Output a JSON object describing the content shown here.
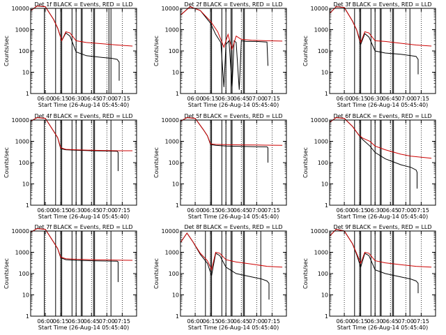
{
  "colors": {
    "events": "#000000",
    "lld": "#cc0000",
    "axis": "#000000",
    "background": "#ffffff"
  },
  "shared": {
    "title_suffix": "BLACK = Events, RED = LLD",
    "xlabel": "Start Time (26-Aug-14 05:45:40)",
    "ylabel": "Counts/sec",
    "y_ticks": [
      "1",
      "10",
      "100",
      "1000",
      "10000"
    ],
    "x_ticks": [
      "06:00",
      "06:15",
      "06:30",
      "06:45",
      "07:00",
      "07:15"
    ]
  },
  "chart_data": [
    {
      "type": "line",
      "title": "Det 1f BLACK = Events, RED = LLD",
      "xlabel": "Start Time (26-Aug-14 05:45:40)",
      "ylabel": "Counts/sec",
      "y_scale": "log",
      "ylim": [
        1,
        10000
      ],
      "x_ticks": [
        "06:00",
        "06:15",
        "06:30",
        "06:45",
        "07:00",
        "07:15"
      ],
      "series": [
        {
          "name": "BLACK = Events",
          "x": [
            "05:46",
            "05:52",
            "06:00",
            "06:08",
            "06:12",
            "06:16",
            "06:20",
            "06:24",
            "06:30",
            "06:40",
            "06:55",
            "07:05",
            "07:10",
            "07:12",
            "07:12"
          ],
          "y": [
            8000,
            13000,
            12000,
            3000,
            1200,
            300,
            700,
            500,
            90,
            60,
            50,
            45,
            40,
            30,
            4
          ]
        },
        {
          "name": "RED = LLD",
          "x": [
            "05:46",
            "05:52",
            "06:00",
            "06:08",
            "06:12",
            "06:16",
            "06:20",
            "06:24",
            "06:30",
            "06:40",
            "06:55",
            "07:10",
            "07:25"
          ],
          "y": [
            8000,
            13000,
            12000,
            3000,
            1200,
            300,
            800,
            700,
            300,
            250,
            220,
            190,
            170
          ]
        }
      ],
      "vlines": [
        "05:59",
        "06:10",
        "06:15",
        "06:16",
        "06:26",
        "06:30",
        "06:35",
        "06:36",
        "06:47",
        "06:48",
        "07:02",
        "07:04"
      ]
    },
    {
      "type": "line",
      "title": "Det 2f BLACK = Events, RED = LLD",
      "xlabel": "Start Time (26-Aug-14 05:45:40)",
      "ylabel": "Counts/sec",
      "y_scale": "log",
      "ylim": [
        1,
        10000
      ],
      "x_ticks": [
        "06:00",
        "06:15",
        "06:30",
        "06:45",
        "07:00",
        "07:15"
      ],
      "series": [
        {
          "name": "BLACK = Events",
          "x": [
            "05:46",
            "05:55",
            "06:05",
            "06:15",
            "06:20",
            "06:25",
            "06:28",
            "06:30",
            "06:33",
            "06:36",
            "06:38",
            "06:40",
            "06:43",
            "06:45",
            "06:50",
            "07:00",
            "07:10",
            "07:11"
          ],
          "y": [
            5000,
            12000,
            8000,
            2000,
            600,
            250,
            2,
            200,
            300,
            2,
            300,
            250,
            1.5,
            300,
            280,
            280,
            260,
            20
          ]
        },
        {
          "name": "RED = LLD",
          "x": [
            "05:46",
            "05:55",
            "06:05",
            "06:15",
            "06:22",
            "06:28",
            "06:32",
            "06:36",
            "06:40",
            "06:45",
            "06:55",
            "07:10",
            "07:25"
          ],
          "y": [
            5000,
            12000,
            8000,
            2500,
            800,
            150,
            600,
            120,
            500,
            350,
            320,
            300,
            290
          ]
        }
      ],
      "vlines": [
        "06:15",
        "06:16",
        "06:26",
        "06:30",
        "06:35",
        "06:36",
        "06:47",
        "06:48"
      ]
    },
    {
      "type": "line",
      "title": "Det 3f BLACK = Events, RED = LLD",
      "xlabel": "Start Time (26-Aug-14 05:45:40)",
      "ylabel": "Counts/sec",
      "y_scale": "log",
      "ylim": [
        1,
        10000
      ],
      "x_ticks": [
        "06:00",
        "06:15",
        "06:30",
        "06:45",
        "07:00",
        "07:15"
      ],
      "series": [
        {
          "name": "BLACK = Events",
          "x": [
            "05:46",
            "05:52",
            "06:00",
            "06:08",
            "06:12",
            "06:16",
            "06:20",
            "06:24",
            "06:30",
            "06:40",
            "06:55",
            "07:05",
            "07:10",
            "07:12",
            "07:12"
          ],
          "y": [
            6000,
            12000,
            11000,
            2500,
            1000,
            200,
            650,
            450,
            100,
            80,
            70,
            60,
            55,
            40,
            8
          ]
        },
        {
          "name": "RED = LLD",
          "x": [
            "05:46",
            "05:52",
            "06:00",
            "06:08",
            "06:12",
            "06:16",
            "06:20",
            "06:24",
            "06:30",
            "06:40",
            "06:55",
            "07:10",
            "07:25"
          ],
          "y": [
            6000,
            12000,
            11000,
            2500,
            1000,
            250,
            800,
            700,
            300,
            280,
            230,
            190,
            170
          ]
        }
      ],
      "vlines": [
        "06:10",
        "06:15",
        "06:16",
        "06:26",
        "06:30",
        "06:35",
        "06:36",
        "06:47",
        "06:48",
        "07:04"
      ]
    },
    {
      "type": "line",
      "title": "Det 4f BLACK = Events, RED = LLD",
      "xlabel": "Start Time (26-Aug-14 05:45:40)",
      "ylabel": "Counts/sec",
      "y_scale": "log",
      "ylim": [
        1,
        10000
      ],
      "x_ticks": [
        "06:00",
        "06:15",
        "06:30",
        "06:45",
        "07:00",
        "07:15"
      ],
      "series": [
        {
          "name": "BLACK = Events",
          "x": [
            "05:46",
            "05:52",
            "06:00",
            "06:08",
            "06:12",
            "06:15",
            "06:20",
            "06:30",
            "06:45",
            "07:00",
            "07:10",
            "07:11",
            "07:11"
          ],
          "y": [
            9000,
            13000,
            12000,
            3000,
            1500,
            450,
            400,
            380,
            360,
            350,
            340,
            300,
            40
          ]
        },
        {
          "name": "RED = LLD",
          "x": [
            "05:46",
            "05:52",
            "06:00",
            "06:08",
            "06:12",
            "06:15",
            "06:20",
            "06:30",
            "06:45",
            "07:00",
            "07:10",
            "07:25"
          ],
          "y": [
            9000,
            13000,
            12000,
            3000,
            1500,
            500,
            420,
            400,
            380,
            370,
            360,
            360
          ]
        }
      ],
      "vlines": [
        "05:59",
        "06:10",
        "06:15",
        "06:16",
        "06:26",
        "06:30",
        "06:35",
        "06:36",
        "06:47",
        "06:48",
        "07:04"
      ]
    },
    {
      "type": "line",
      "title": "Det 5f BLACK = Events, RED = LLD",
      "xlabel": "Start Time (26-Aug-14 05:45:40)",
      "ylabel": "Counts/sec",
      "y_scale": "log",
      "ylim": [
        1,
        10000
      ],
      "x_ticks": [
        "06:00",
        "06:15",
        "06:30",
        "06:45",
        "07:00",
        "07:15"
      ],
      "series": [
        {
          "name": "BLACK = Events",
          "x": [
            "05:46",
            "05:52",
            "06:00",
            "06:08",
            "06:12",
            "06:15",
            "06:20",
            "06:30",
            "06:45",
            "07:00",
            "07:10",
            "07:11",
            "07:11"
          ],
          "y": [
            9000,
            13000,
            12000,
            3500,
            1800,
            700,
            650,
            600,
            580,
            560,
            550,
            500,
            100
          ]
        },
        {
          "name": "RED = LLD",
          "x": [
            "05:46",
            "05:52",
            "06:00",
            "06:08",
            "06:12",
            "06:15",
            "06:20",
            "06:30",
            "06:45",
            "07:00",
            "07:10",
            "07:25"
          ],
          "y": [
            9000,
            13000,
            12000,
            3500,
            1800,
            750,
            720,
            700,
            680,
            670,
            660,
            650
          ]
        }
      ],
      "vlines": [
        "06:15",
        "06:16",
        "06:26",
        "06:30",
        "06:35",
        "06:36",
        "06:47",
        "06:48"
      ]
    },
    {
      "type": "line",
      "title": "Det 6f BLACK = Events, RED = LLD",
      "xlabel": "Start Time (26-Aug-14 05:45:40)",
      "ylabel": "Counts/sec",
      "y_scale": "log",
      "ylim": [
        1,
        10000
      ],
      "x_ticks": [
        "06:00",
        "06:15",
        "06:30",
        "06:45",
        "07:00",
        "07:15"
      ],
      "series": [
        {
          "name": "BLACK = Events",
          "x": [
            "05:46",
            "05:52",
            "06:00",
            "06:08",
            "06:14",
            "06:18",
            "06:25",
            "06:30",
            "06:40",
            "06:55",
            "07:05",
            "07:10",
            "07:11",
            "07:11"
          ],
          "y": [
            8000,
            13000,
            12000,
            5000,
            2000,
            1200,
            600,
            300,
            150,
            80,
            60,
            45,
            35,
            6
          ]
        },
        {
          "name": "RED = LLD",
          "x": [
            "05:46",
            "05:52",
            "06:00",
            "06:08",
            "06:14",
            "06:18",
            "06:25",
            "06:30",
            "06:40",
            "06:55",
            "07:05",
            "07:15",
            "07:25"
          ],
          "y": [
            8000,
            13000,
            12000,
            5000,
            2000,
            1400,
            1000,
            600,
            400,
            250,
            200,
            180,
            160
          ]
        }
      ],
      "vlines": [
        "06:10",
        "06:15",
        "06:16",
        "06:26",
        "06:30",
        "06:35",
        "06:36",
        "06:47",
        "06:48",
        "07:04"
      ]
    },
    {
      "type": "line",
      "title": "Det 7f BLACK = Events, RED = LLD",
      "xlabel": "Start Time (26-Aug-14 05:45:40)",
      "ylabel": "Counts/sec",
      "y_scale": "log",
      "ylim": [
        1,
        10000
      ],
      "x_ticks": [
        "06:00",
        "06:15",
        "06:30",
        "06:45",
        "07:00",
        "07:15"
      ],
      "series": [
        {
          "name": "BLACK = Events",
          "x": [
            "05:46",
            "05:52",
            "06:00",
            "06:08",
            "06:12",
            "06:15",
            "06:20",
            "06:30",
            "06:45",
            "07:00",
            "07:10",
            "07:11",
            "07:11"
          ],
          "y": [
            9000,
            13000,
            12000,
            3000,
            1500,
            550,
            450,
            420,
            400,
            390,
            380,
            350,
            40
          ]
        },
        {
          "name": "RED = LLD",
          "x": [
            "05:46",
            "05:52",
            "06:00",
            "06:08",
            "06:12",
            "06:15",
            "06:20",
            "06:30",
            "06:45",
            "07:00",
            "07:10",
            "07:25"
          ],
          "y": [
            9000,
            13000,
            12000,
            3000,
            1500,
            600,
            500,
            470,
            450,
            440,
            430,
            420
          ]
        }
      ],
      "vlines": [
        "05:59",
        "06:10",
        "06:15",
        "06:16",
        "06:26",
        "06:30",
        "06:35",
        "06:36",
        "06:47",
        "06:48",
        "07:04"
      ]
    },
    {
      "type": "line",
      "title": "Det 8f BLACK = Events, RED = LLD",
      "xlabel": "Start Time (26-Aug-14 05:45:40)",
      "ylabel": "Counts/sec",
      "y_scale": "log",
      "ylim": [
        1,
        10000
      ],
      "x_ticks": [
        "06:00",
        "06:15",
        "06:30",
        "06:45",
        "07:00",
        "07:15"
      ],
      "series": [
        {
          "name": "BLACK = Events",
          "x": [
            "05:46",
            "05:52",
            "05:58",
            "06:05",
            "06:12",
            "06:16",
            "06:20",
            "06:24",
            "06:30",
            "06:40",
            "06:55",
            "07:05",
            "07:10",
            "07:12",
            "07:12"
          ],
          "y": [
            3000,
            8000,
            3000,
            800,
            300,
            80,
            900,
            700,
            200,
            100,
            70,
            55,
            45,
            35,
            6
          ]
        },
        {
          "name": "RED = LLD",
          "x": [
            "05:46",
            "05:52",
            "05:58",
            "06:05",
            "06:12",
            "06:16",
            "06:20",
            "06:24",
            "06:30",
            "06:40",
            "06:55",
            "07:10",
            "07:25"
          ],
          "y": [
            3000,
            8000,
            3000,
            900,
            400,
            150,
            1000,
            900,
            450,
            350,
            280,
            220,
            200
          ]
        }
      ],
      "vlines": [
        "06:10",
        "06:15",
        "06:16",
        "06:26",
        "06:30",
        "06:35",
        "06:36",
        "06:47",
        "06:48",
        "07:04"
      ]
    },
    {
      "type": "line",
      "title": "Det 9f BLACK = Events, RED = LLD",
      "xlabel": "Start Time (26-Aug-14 05:45:40)",
      "ylabel": "Counts/sec",
      "y_scale": "log",
      "ylim": [
        1,
        10000
      ],
      "x_ticks": [
        "06:00",
        "06:15",
        "06:30",
        "06:45",
        "07:00",
        "07:15"
      ],
      "series": [
        {
          "name": "BLACK = Events",
          "x": [
            "05:46",
            "05:52",
            "06:00",
            "06:08",
            "06:12",
            "06:16",
            "06:20",
            "06:24",
            "06:30",
            "06:40",
            "06:55",
            "07:05",
            "07:10",
            "07:12",
            "07:12"
          ],
          "y": [
            6000,
            12000,
            10000,
            2500,
            800,
            200,
            900,
            700,
            150,
            100,
            70,
            55,
            45,
            35,
            12
          ]
        },
        {
          "name": "RED = LLD",
          "x": [
            "05:46",
            "05:52",
            "06:00",
            "06:08",
            "06:12",
            "06:16",
            "06:20",
            "06:24",
            "06:30",
            "06:40",
            "06:55",
            "07:10",
            "07:25"
          ],
          "y": [
            6000,
            12000,
            10000,
            2500,
            900,
            300,
            1000,
            900,
            400,
            320,
            260,
            220,
            200
          ]
        }
      ],
      "vlines": [
        "06:10",
        "06:15",
        "06:16",
        "06:26",
        "06:30",
        "06:35",
        "06:36",
        "06:47",
        "06:48",
        "07:04"
      ]
    }
  ]
}
